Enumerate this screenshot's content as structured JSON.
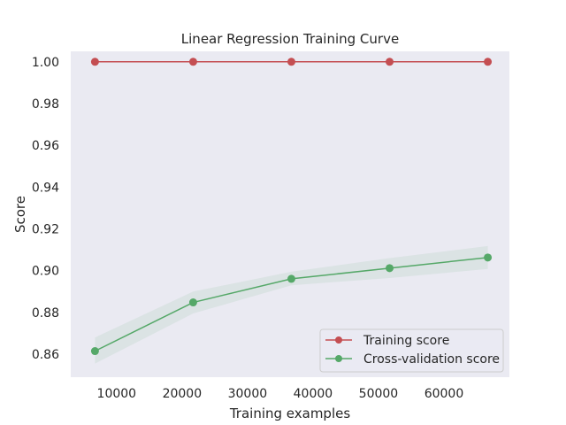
{
  "chart_data": {
    "type": "line",
    "title": "Linear Regression Training Curve",
    "xlabel": "Training examples",
    "ylabel": "Score",
    "xlim": [
      3000,
      70000
    ],
    "ylim": [
      0.849,
      1.005
    ],
    "xticks": [
      10000,
      20000,
      30000,
      40000,
      50000,
      60000
    ],
    "yticks": [
      0.86,
      0.88,
      0.9,
      0.92,
      0.94,
      0.96,
      0.98,
      1.0
    ],
    "ytick_labels": [
      "0.86",
      "0.88",
      "0.90",
      "0.92",
      "0.94",
      "0.96",
      "0.98",
      "1.00"
    ],
    "grid": false,
    "background_color": "#eaeaf2",
    "legend_position": "lower-right",
    "x": [
      6700,
      21700,
      36700,
      51700,
      66700
    ],
    "series": [
      {
        "name": "Training score",
        "color": "#c44e52",
        "values": [
          1.0,
          1.0,
          1.0,
          1.0,
          1.0
        ],
        "band_lower": [
          1.0,
          1.0,
          1.0,
          1.0,
          1.0
        ],
        "band_upper": [
          1.0,
          1.0,
          1.0,
          1.0,
          1.0
        ]
      },
      {
        "name": "Cross-validation score",
        "color": "#55a868",
        "values": [
          0.8615,
          0.8848,
          0.8961,
          0.9012,
          0.9063
        ],
        "band_lower": [
          0.8555,
          0.8795,
          0.893,
          0.8965,
          0.9008
        ],
        "band_upper": [
          0.868,
          0.89,
          0.8995,
          0.906,
          0.9118
        ]
      }
    ]
  }
}
